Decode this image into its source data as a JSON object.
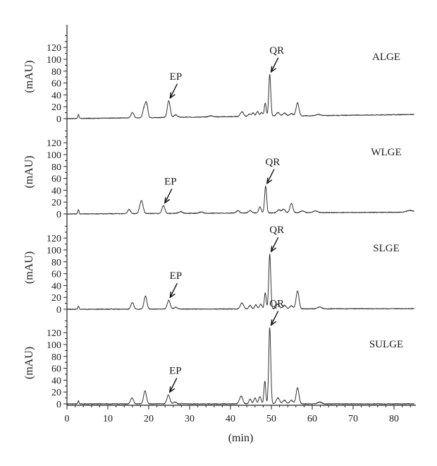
{
  "chart_data": {
    "type": "line",
    "xlabel": "(min)",
    "x_ticks": [
      "0",
      "10",
      "20",
      "30",
      "40",
      "50",
      "60",
      "70",
      "80"
    ],
    "xlim": [
      0,
      85
    ],
    "panels": [
      {
        "sample": "ALGE",
        "ylabel": "(mAU)",
        "ylim": [
          -5,
          140
        ],
        "y_ticks": [
          "0",
          "20",
          "40",
          "60",
          "80",
          "100",
          "120"
        ],
        "baseline": [
          [
            0,
            0
          ],
          [
            85,
            7
          ]
        ],
        "peaks": [
          {
            "x": 2.8,
            "height": 7,
            "width": 0.15
          },
          {
            "x": 16.0,
            "height": 9,
            "width": 0.35
          },
          {
            "x": 18.9,
            "height": 17,
            "width": 0.35
          },
          {
            "x": 19.5,
            "height": 22,
            "width": 0.3
          },
          {
            "x": 24.9,
            "height": 28,
            "width": 0.35
          },
          {
            "x": 26.6,
            "height": 4,
            "width": 0.4
          },
          {
            "x": 35.2,
            "height": 2,
            "width": 0.5
          },
          {
            "x": 42.8,
            "height": 8,
            "width": 0.4
          },
          {
            "x": 44.6,
            "height": 4,
            "width": 0.3
          },
          {
            "x": 45.5,
            "height": 6,
            "width": 0.3
          },
          {
            "x": 46.6,
            "height": 8,
            "width": 0.3
          },
          {
            "x": 47.6,
            "height": 6,
            "width": 0.3
          },
          {
            "x": 48.5,
            "height": 22,
            "width": 0.22
          },
          {
            "x": 49.6,
            "height": 70,
            "width": 0.25
          },
          {
            "x": 51.6,
            "height": 6,
            "width": 0.4
          },
          {
            "x": 53.2,
            "height": 5,
            "width": 0.4
          },
          {
            "x": 54.9,
            "height": 4,
            "width": 0.4
          },
          {
            "x": 56.4,
            "height": 22,
            "width": 0.35
          },
          {
            "x": 61.5,
            "height": 2,
            "width": 0.5
          }
        ],
        "annotations": [
          {
            "text": "EP",
            "x": 25.0
          },
          {
            "text": "QR",
            "x": 49.7
          }
        ]
      },
      {
        "sample": "WLGE",
        "ylabel": "(mAU)",
        "ylim": [
          -5,
          140
        ],
        "y_ticks": [
          "0",
          "20",
          "40",
          "60",
          "80",
          "100",
          "120"
        ],
        "baseline": [
          [
            0,
            0
          ],
          [
            85,
            3
          ]
        ],
        "peaks": [
          {
            "x": 2.8,
            "height": 7,
            "width": 0.15
          },
          {
            "x": 15.2,
            "height": 7,
            "width": 0.35
          },
          {
            "x": 18.2,
            "height": 22,
            "width": 0.4
          },
          {
            "x": 23.6,
            "height": 13,
            "width": 0.35
          },
          {
            "x": 27.8,
            "height": 3,
            "width": 0.4
          },
          {
            "x": 32.8,
            "height": 2,
            "width": 0.5
          },
          {
            "x": 41.8,
            "height": 4,
            "width": 0.4
          },
          {
            "x": 44.8,
            "height": 4,
            "width": 0.4
          },
          {
            "x": 47.2,
            "height": 10,
            "width": 0.3
          },
          {
            "x": 48.6,
            "height": 45,
            "width": 0.25
          },
          {
            "x": 51.8,
            "height": 5,
            "width": 0.4
          },
          {
            "x": 53.0,
            "height": 6,
            "width": 0.4
          },
          {
            "x": 54.9,
            "height": 16,
            "width": 0.35
          },
          {
            "x": 57.6,
            "height": 3,
            "width": 0.5
          },
          {
            "x": 60.8,
            "height": 3,
            "width": 0.5
          },
          {
            "x": 84.0,
            "height": 3,
            "width": 0.8
          }
        ],
        "annotations": [
          {
            "text": "EP",
            "x": 23.6
          },
          {
            "text": "QR",
            "x": 48.5
          }
        ]
      },
      {
        "sample": "SLGE",
        "ylabel": "(mAU)",
        "ylim": [
          -5,
          140
        ],
        "y_ticks": [
          "0",
          "20",
          "40",
          "60",
          "80",
          "100",
          "120"
        ],
        "baseline": [
          [
            0,
            0
          ],
          [
            85,
            1
          ]
        ],
        "peaks": [
          {
            "x": 2.8,
            "height": 5,
            "width": 0.15
          },
          {
            "x": 16.0,
            "height": 11,
            "width": 0.35
          },
          {
            "x": 19.2,
            "height": 22,
            "width": 0.35
          },
          {
            "x": 24.9,
            "height": 15,
            "width": 0.35
          },
          {
            "x": 26.6,
            "height": 3,
            "width": 0.4
          },
          {
            "x": 42.8,
            "height": 10,
            "width": 0.4
          },
          {
            "x": 44.8,
            "height": 6,
            "width": 0.3
          },
          {
            "x": 46.2,
            "height": 7,
            "width": 0.3
          },
          {
            "x": 47.4,
            "height": 8,
            "width": 0.3
          },
          {
            "x": 48.5,
            "height": 27,
            "width": 0.22
          },
          {
            "x": 49.6,
            "height": 92,
            "width": 0.25
          },
          {
            "x": 51.6,
            "height": 8,
            "width": 0.4
          },
          {
            "x": 53.2,
            "height": 6,
            "width": 0.4
          },
          {
            "x": 54.9,
            "height": 5,
            "width": 0.4
          },
          {
            "x": 56.4,
            "height": 30,
            "width": 0.35
          },
          {
            "x": 61.8,
            "height": 3,
            "width": 0.5
          }
        ],
        "annotations": [
          {
            "text": "EP",
            "x": 24.9
          },
          {
            "text": "QR",
            "x": 49.7
          }
        ]
      },
      {
        "sample": "SULGE",
        "ylabel": "(mAU)",
        "ylim": [
          -5,
          140
        ],
        "y_ticks": [
          "0",
          "20",
          "40",
          "60",
          "80",
          "100",
          "120"
        ],
        "baseline": [
          [
            0,
            0
          ],
          [
            85,
            0
          ]
        ],
        "peaks": [
          {
            "x": 2.8,
            "height": 5,
            "width": 0.15
          },
          {
            "x": 15.9,
            "height": 10,
            "width": 0.35
          },
          {
            "x": 19.1,
            "height": 22,
            "width": 0.35
          },
          {
            "x": 24.8,
            "height": 15,
            "width": 0.35
          },
          {
            "x": 26.4,
            "height": 3,
            "width": 0.4
          },
          {
            "x": 42.6,
            "height": 13,
            "width": 0.4
          },
          {
            "x": 44.8,
            "height": 8,
            "width": 0.3
          },
          {
            "x": 46.0,
            "height": 10,
            "width": 0.3
          },
          {
            "x": 47.2,
            "height": 12,
            "width": 0.3
          },
          {
            "x": 48.4,
            "height": 38,
            "width": 0.22
          },
          {
            "x": 49.6,
            "height": 128,
            "width": 0.25
          },
          {
            "x": 51.6,
            "height": 10,
            "width": 0.4
          },
          {
            "x": 53.2,
            "height": 6,
            "width": 0.4
          },
          {
            "x": 54.9,
            "height": 6,
            "width": 0.4
          },
          {
            "x": 56.4,
            "height": 27,
            "width": 0.35
          },
          {
            "x": 61.8,
            "height": 3,
            "width": 0.5
          }
        ],
        "annotations": [
          {
            "text": "EP",
            "x": 24.9
          },
          {
            "text": "QR",
            "x": 49.7
          }
        ]
      }
    ]
  }
}
